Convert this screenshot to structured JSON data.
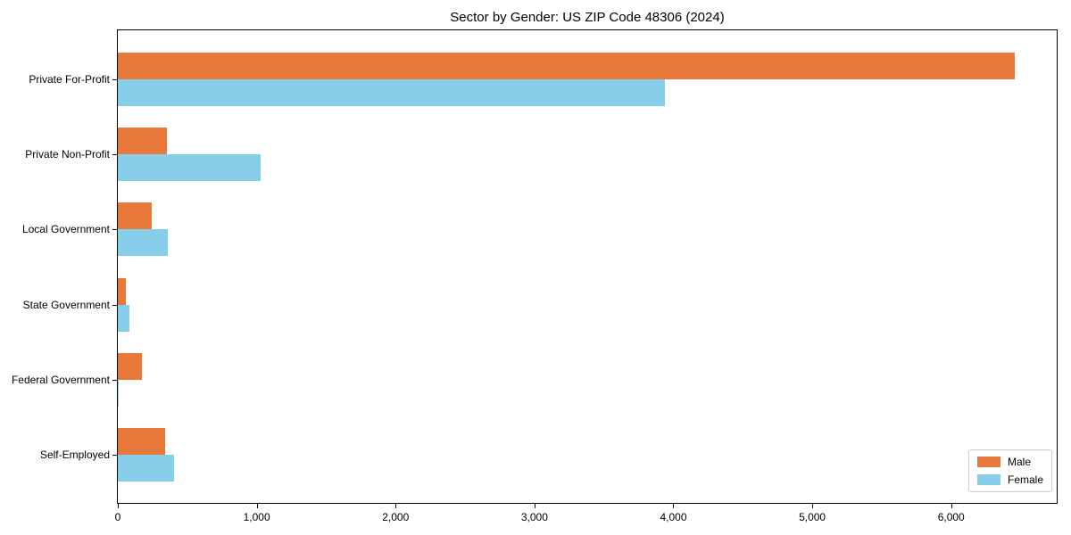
{
  "chart_data": {
    "type": "bar",
    "orientation": "horizontal",
    "title": "Sector by Gender: US ZIP Code 48306 (2024)",
    "xlabel": "",
    "ylabel": "",
    "categories": [
      "Private For-Profit",
      "Private Non-Profit",
      "Local Government",
      "State Government",
      "Federal Government",
      "Self-Employed"
    ],
    "series": [
      {
        "name": "Male",
        "color": "#E8793A",
        "values": [
          6455,
          355,
          245,
          55,
          175,
          340
        ]
      },
      {
        "name": "Female",
        "color": "#87CEEB",
        "values": [
          3940,
          1025,
          360,
          85,
          8,
          405
        ]
      }
    ],
    "xlim": [
      0,
      6760
    ],
    "x_ticks": [
      0,
      1000,
      2000,
      3000,
      4000,
      5000,
      6000
    ],
    "x_tick_labels": [
      "0",
      "1,000",
      "2,000",
      "3,000",
      "4,000",
      "5,000",
      "6,000"
    ],
    "grid": false,
    "legend": {
      "position": "lower right",
      "entries": [
        "Male",
        "Female"
      ]
    }
  }
}
